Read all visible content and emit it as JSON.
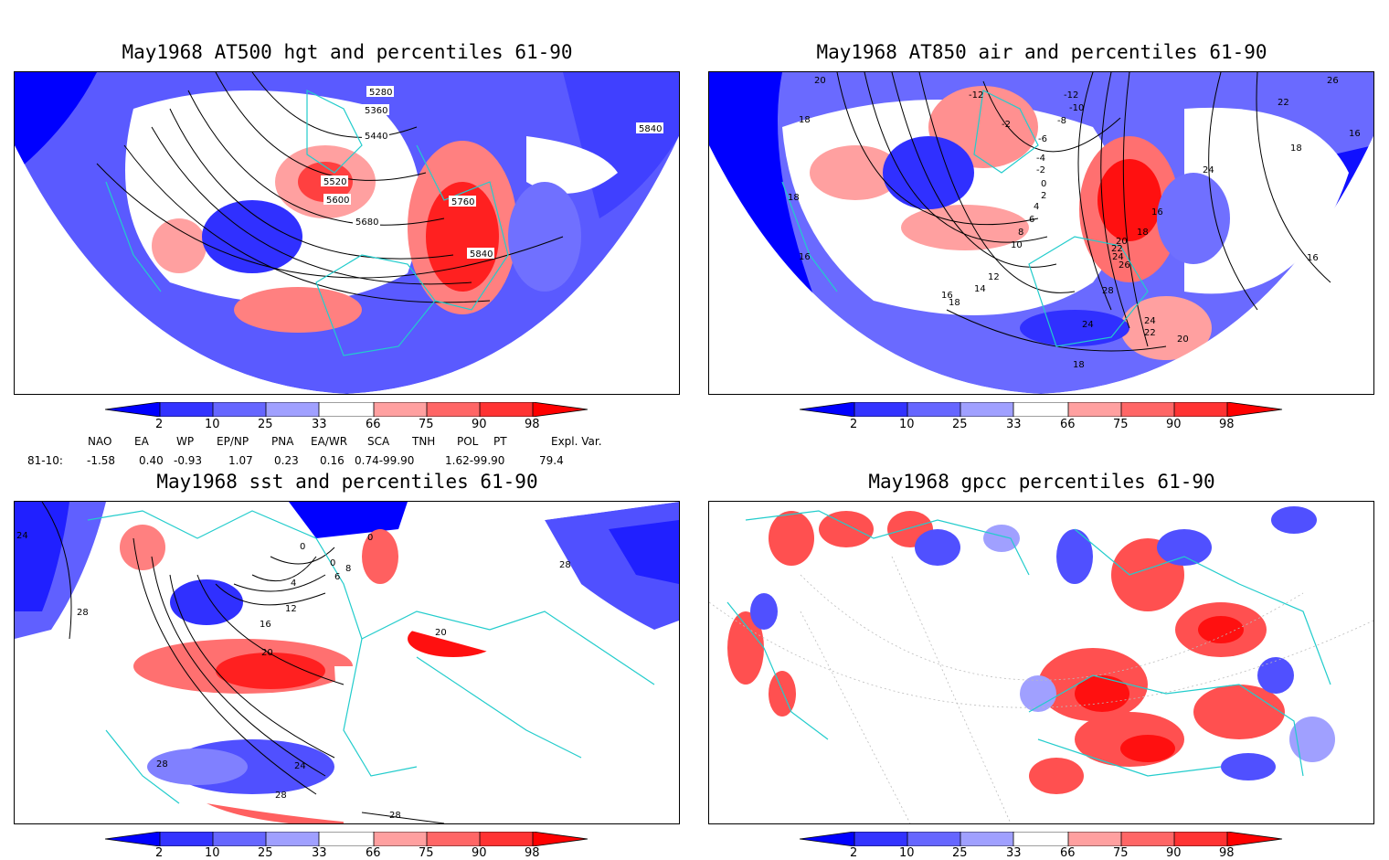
{
  "panels": [
    {
      "title": "May1968 AT500 hgt and percentiles 61-90",
      "contour_labels": [
        "5280",
        "5360",
        "5440",
        "5520",
        "5600",
        "5680",
        "5760",
        "5840",
        "5840"
      ]
    },
    {
      "title": "May1968 AT850 air and percentiles 61-90",
      "contour_labels": [
        "20",
        "18",
        "18",
        "16",
        "-12",
        "-2",
        "-12",
        "-10",
        "-8",
        "-6",
        "-4",
        "-2",
        "0",
        "2",
        "4",
        "6",
        "8",
        "10",
        "12",
        "14",
        "16",
        "18",
        "16",
        "18",
        "20",
        "22",
        "24",
        "26",
        "28",
        "24",
        "24",
        "22",
        "20",
        "18",
        "24",
        "26",
        "22",
        "18",
        "16",
        "16"
      ]
    },
    {
      "title": "May1968 sst and percentiles 61-90",
      "contour_labels": [
        "24",
        "0",
        "0",
        "0",
        "4",
        "6",
        "8",
        "12",
        "16",
        "20",
        "28",
        "20",
        "28",
        "24",
        "28",
        "28",
        "28"
      ]
    },
    {
      "title": "May1968 gpcc percentiles 61-90",
      "contour_labels": []
    }
  ],
  "colorbar": {
    "labels": [
      "2",
      "10",
      "25",
      "33",
      "66",
      "75",
      "90",
      "98"
    ],
    "colors": [
      "#0000ff",
      "#3333ff",
      "#6666ff",
      "#a0a0ff",
      "#ffffff",
      "#ffa0a0",
      "#ff6666",
      "#ff3333",
      "#ff0000"
    ]
  },
  "indices": {
    "headers": [
      "NAO",
      "EA",
      "WP",
      "EP/NP",
      "PNA",
      "EA/WR",
      "SCA",
      "TNH",
      "POL",
      "PT",
      "Expl. Var."
    ],
    "row_label": "81-10:",
    "values": [
      "-1.58",
      "0.40",
      "-0.93",
      "1.07",
      "0.23",
      "0.16",
      "0.74-99.90",
      "1.62-99.90",
      "79.4"
    ]
  }
}
